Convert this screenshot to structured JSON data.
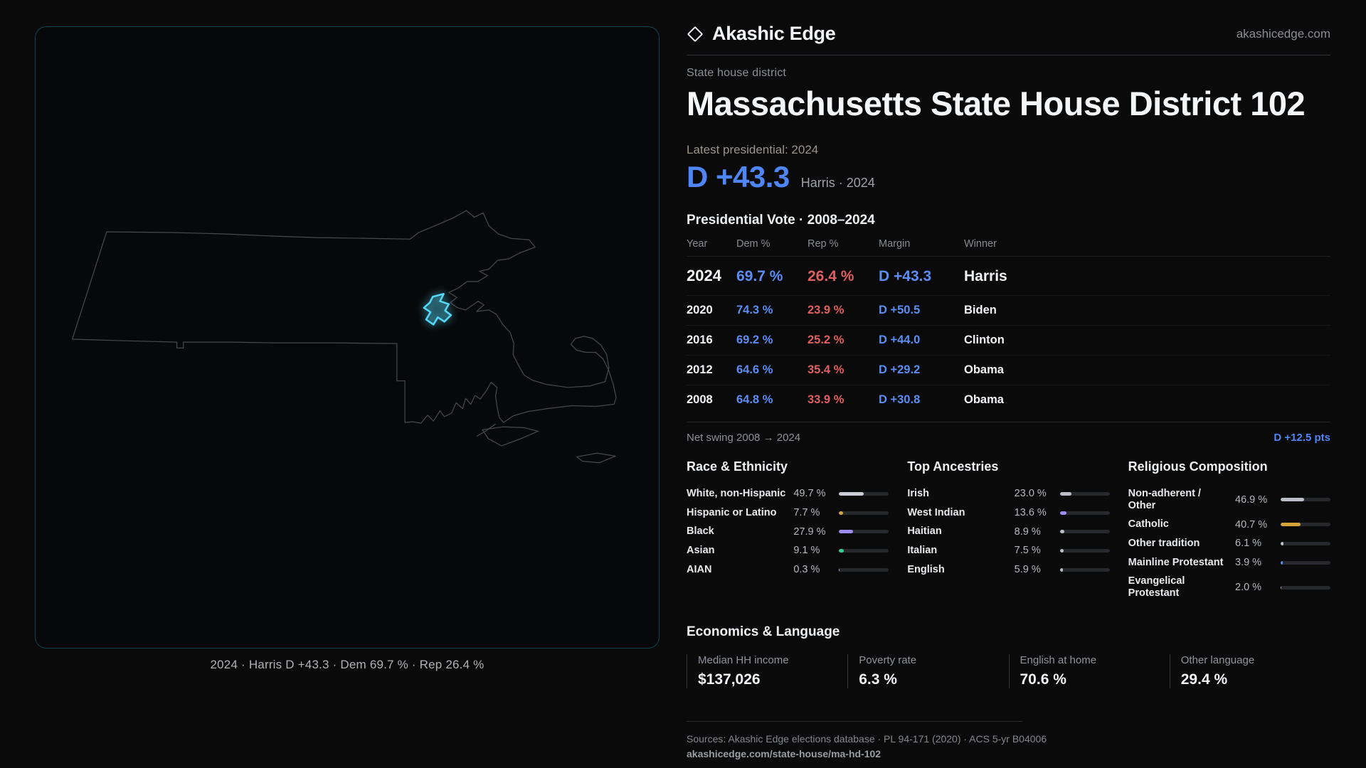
{
  "brand": {
    "name": "Akashic Edge",
    "site": "akashicedge.com",
    "accent_blue": "#4f86f5",
    "accent_red": "#df5f5f"
  },
  "icons": {
    "brand": "diamond-icon"
  },
  "map_panel": {
    "caption": "2024 · Harris D +43.3 · Dem 69.7 % · Rep 26.4 %",
    "outline_color": "#45494f",
    "district_color": "#55d8f6"
  },
  "page": {
    "kicker": "State house district",
    "title": "Massachusetts State House District 102",
    "latest_label": "Latest presidential: 2024",
    "latest_margin": "D +43.3",
    "latest_detail": "Harris · 2024"
  },
  "vote": {
    "title": "Presidential Vote · 2008–2024",
    "columns": {
      "year": "Year",
      "dem": "Dem %",
      "rep": "Rep %",
      "margin": "Margin",
      "winner": "Winner"
    },
    "rows": [
      {
        "year": "2024",
        "dem": "69.7 %",
        "rep": "26.4 %",
        "margin": "D +43.3",
        "winner": "Harris"
      },
      {
        "year": "2020",
        "dem": "74.3 %",
        "rep": "23.9 %",
        "margin": "D +50.5",
        "winner": "Biden"
      },
      {
        "year": "2016",
        "dem": "69.2 %",
        "rep": "25.2 %",
        "margin": "D +44.0",
        "winner": "Clinton"
      },
      {
        "year": "2012",
        "dem": "64.6 %",
        "rep": "35.4 %",
        "margin": "D +29.2",
        "winner": "Obama"
      },
      {
        "year": "2008",
        "dem": "64.8 %",
        "rep": "33.9 %",
        "margin": "D +30.8",
        "winner": "Obama"
      }
    ],
    "net_swing_label": "Net swing 2008 → 2024",
    "net_swing_value": "D +12.5 pts"
  },
  "demographics": {
    "race": {
      "title": "Race & Ethnicity",
      "items": [
        {
          "label": "White, non-Hispanic",
          "value": "49.7 %",
          "pct": 49.7,
          "color": "#c9cdd6"
        },
        {
          "label": "Hispanic or Latino",
          "value": "7.7 %",
          "pct": 7.7,
          "color": "#d2a338"
        },
        {
          "label": "Black",
          "value": "27.9 %",
          "pct": 27.9,
          "color": "#9d8cf2"
        },
        {
          "label": "Asian",
          "value": "9.1 %",
          "pct": 9.1,
          "color": "#2fcf8e"
        },
        {
          "label": "AIAN",
          "value": "0.3 %",
          "pct": 0.3,
          "color": "#b9bec8"
        }
      ]
    },
    "ancestry": {
      "title": "Top Ancestries",
      "items": [
        {
          "label": "Irish",
          "value": "23.0 %",
          "pct": 23.0,
          "color": "#b9bec8"
        },
        {
          "label": "West Indian",
          "value": "13.6 %",
          "pct": 13.6,
          "color": "#9d8cf2"
        },
        {
          "label": "Haitian",
          "value": "8.9 %",
          "pct": 8.9,
          "color": "#b9bec8"
        },
        {
          "label": "Italian",
          "value": "7.5 %",
          "pct": 7.5,
          "color": "#b9bec8"
        },
        {
          "label": "English",
          "value": "5.9 %",
          "pct": 5.9,
          "color": "#b9bec8"
        }
      ]
    },
    "religion": {
      "title": "Religious Composition",
      "items": [
        {
          "label": "Non-adherent / Other",
          "value": "46.9 %",
          "pct": 46.9,
          "color": "#b9bec8"
        },
        {
          "label": "Catholic",
          "value": "40.7 %",
          "pct": 40.7,
          "color": "#d2a338"
        },
        {
          "label": "Other tradition",
          "value": "6.1 %",
          "pct": 6.1,
          "color": "#b9bec8"
        },
        {
          "label": "Mainline Protestant",
          "value": "3.9 %",
          "pct": 3.9,
          "color": "#5b8df2"
        },
        {
          "label": "Evangelical Protestant",
          "value": "2.0 %",
          "pct": 2.0,
          "color": "#b9bec8"
        }
      ]
    }
  },
  "economics": {
    "title": "Economics & Language",
    "stats": [
      {
        "label": "Median HH income",
        "value": "$137,026"
      },
      {
        "label": "Poverty rate",
        "value": "6.3 %"
      },
      {
        "label": "English at home",
        "value": "70.6 %"
      },
      {
        "label": "Other language",
        "value": "29.4 %"
      }
    ]
  },
  "footer": {
    "sources": "Sources: Akashic Edge elections database · PL 94-171 (2020) · ACS 5-yr B04006",
    "permalink": "akashicedge.com/state-house/ma-hd-102"
  },
  "chart_data": [
    {
      "type": "table",
      "title": "Presidential Vote · 2008–2024",
      "columns": [
        "Year",
        "Dem %",
        "Rep %",
        "Margin",
        "Winner"
      ],
      "rows": [
        [
          "2024",
          69.7,
          26.4,
          "D +43.3",
          "Harris"
        ],
        [
          "2020",
          74.3,
          23.9,
          "D +50.5",
          "Biden"
        ],
        [
          "2016",
          69.2,
          25.2,
          "D +44.0",
          "Clinton"
        ],
        [
          "2012",
          64.6,
          35.4,
          "D +29.2",
          "Obama"
        ],
        [
          "2008",
          64.8,
          33.9,
          "D +30.8",
          "Obama"
        ]
      ],
      "annotation": "Net swing 2008 → 2024: D +12.5 pts"
    },
    {
      "type": "bar",
      "title": "Race & Ethnicity",
      "categories": [
        "White, non-Hispanic",
        "Hispanic or Latino",
        "Black",
        "Asian",
        "AIAN"
      ],
      "values": [
        49.7,
        7.7,
        27.9,
        9.1,
        0.3
      ],
      "unit": "%",
      "xlim": [
        0,
        100
      ]
    },
    {
      "type": "bar",
      "title": "Top Ancestries",
      "categories": [
        "Irish",
        "West Indian",
        "Haitian",
        "Italian",
        "English"
      ],
      "values": [
        23.0,
        13.6,
        8.9,
        7.5,
        5.9
      ],
      "unit": "%",
      "xlim": [
        0,
        100
      ]
    },
    {
      "type": "bar",
      "title": "Religious Composition",
      "categories": [
        "Non-adherent / Other",
        "Catholic",
        "Other tradition",
        "Mainline Protestant",
        "Evangelical Protestant"
      ],
      "values": [
        46.9,
        40.7,
        6.1,
        3.9,
        2.0
      ],
      "unit": "%",
      "xlim": [
        0,
        100
      ]
    }
  ]
}
